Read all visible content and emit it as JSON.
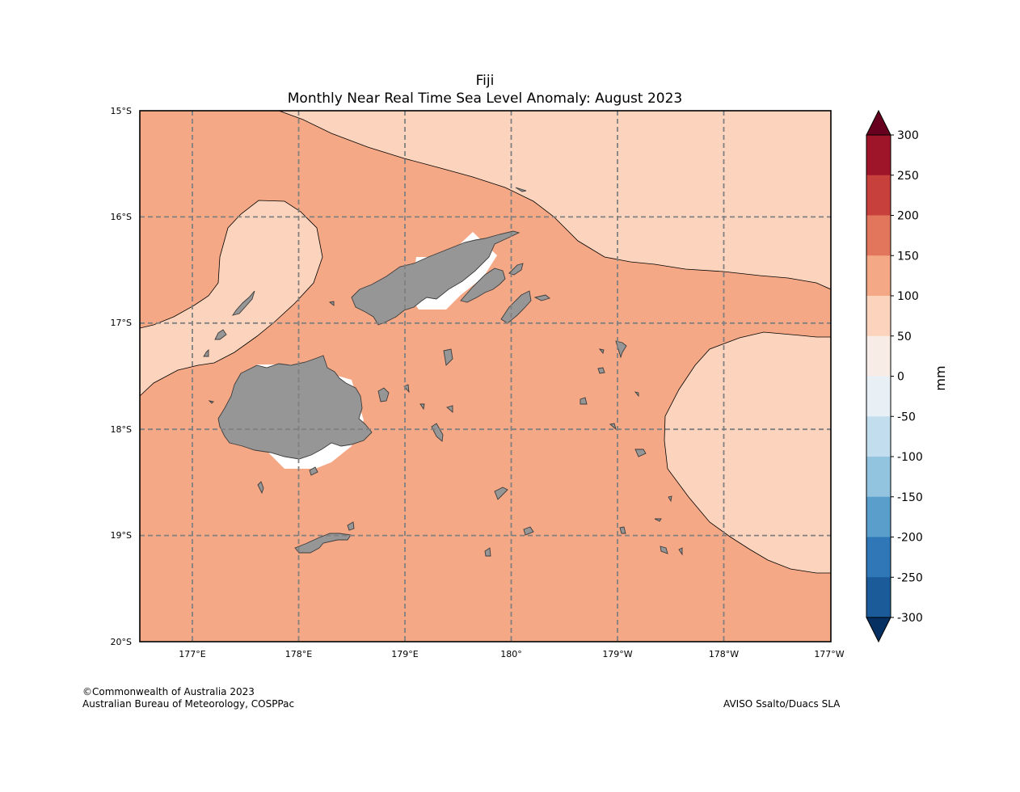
{
  "title": {
    "line1": "Fiji",
    "line2": "Monthly Near Real Time Sea Level Anomaly: August 2023"
  },
  "lat_ticks": [
    "15°S",
    "16°S",
    "17°S",
    "18°S",
    "19°S",
    "20°S"
  ],
  "lon_ticks": [
    "177°E",
    "178°E",
    "179°E",
    "180°",
    "179°W",
    "178°W",
    "177°W"
  ],
  "colorbar": {
    "unit": "mm",
    "ticks": [
      "300",
      "250",
      "200",
      "150",
      "100",
      "50",
      "0",
      "-50",
      "-100",
      "-150",
      "-200",
      "-250",
      "-300"
    ],
    "colors_top_to_bottom": [
      "#9e1428",
      "#c8403c",
      "#e2765c",
      "#f4a885",
      "#fcd3bc",
      "#f8ede6",
      "#e8f0f5",
      "#c2dded",
      "#93c4df",
      "#5a9fcb",
      "#2f77b6",
      "#1b5b9a"
    ],
    "extend_high_color": "#67001f",
    "extend_low_color": "#053061"
  },
  "map_colors": {
    "anomaly_100_150": "#f4a886",
    "anomaly_50_100": "#fcd3bc",
    "land": "#969696",
    "no_data": "#ffffff"
  },
  "credits": {
    "copyright": "©Commonwealth of Australia 2023",
    "agency": "Australian Bureau of Meteorology, COSPPac",
    "source": "AVISO Ssalto/Duacs SLA"
  }
}
